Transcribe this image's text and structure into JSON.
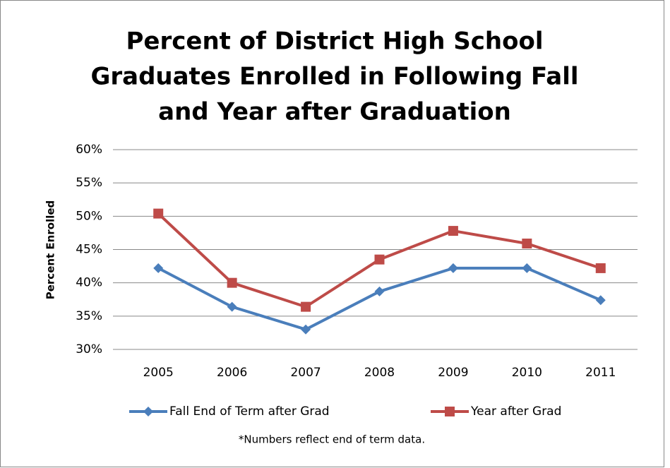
{
  "chart_data": {
    "type": "line",
    "title": [
      "Percent of District High School",
      "Graduates Enrolled in Following Fall",
      "and Year after Graduation"
    ],
    "y_label": "Percent Enrolled",
    "categories": [
      "2005",
      "2006",
      "2007",
      "2008",
      "2009",
      "2010",
      "2011"
    ],
    "series": [
      {
        "name": "Fall End of Term after Grad",
        "color": "#4a7ebb",
        "marker": "diamond",
        "values": [
          42.2,
          36.4,
          33.0,
          38.7,
          42.2,
          42.2,
          37.4
        ]
      },
      {
        "name": "Year after Grad",
        "color": "#be4b48",
        "marker": "square",
        "values": [
          50.4,
          40.0,
          36.4,
          43.5,
          47.8,
          45.9,
          42.2
        ]
      }
    ],
    "ylim": [
      30,
      60
    ],
    "yticks": [
      {
        "value": 30,
        "label": "30%"
      },
      {
        "value": 35,
        "label": "35%"
      },
      {
        "value": 40,
        "label": "40%"
      },
      {
        "value": 45,
        "label": "45%"
      },
      {
        "value": 50,
        "label": "50%"
      },
      {
        "value": 55,
        "label": "55%"
      },
      {
        "value": 60,
        "label": "60%"
      }
    ],
    "grid": true,
    "legend": "bottom",
    "note": "*Numbers reflect end of term data."
  }
}
